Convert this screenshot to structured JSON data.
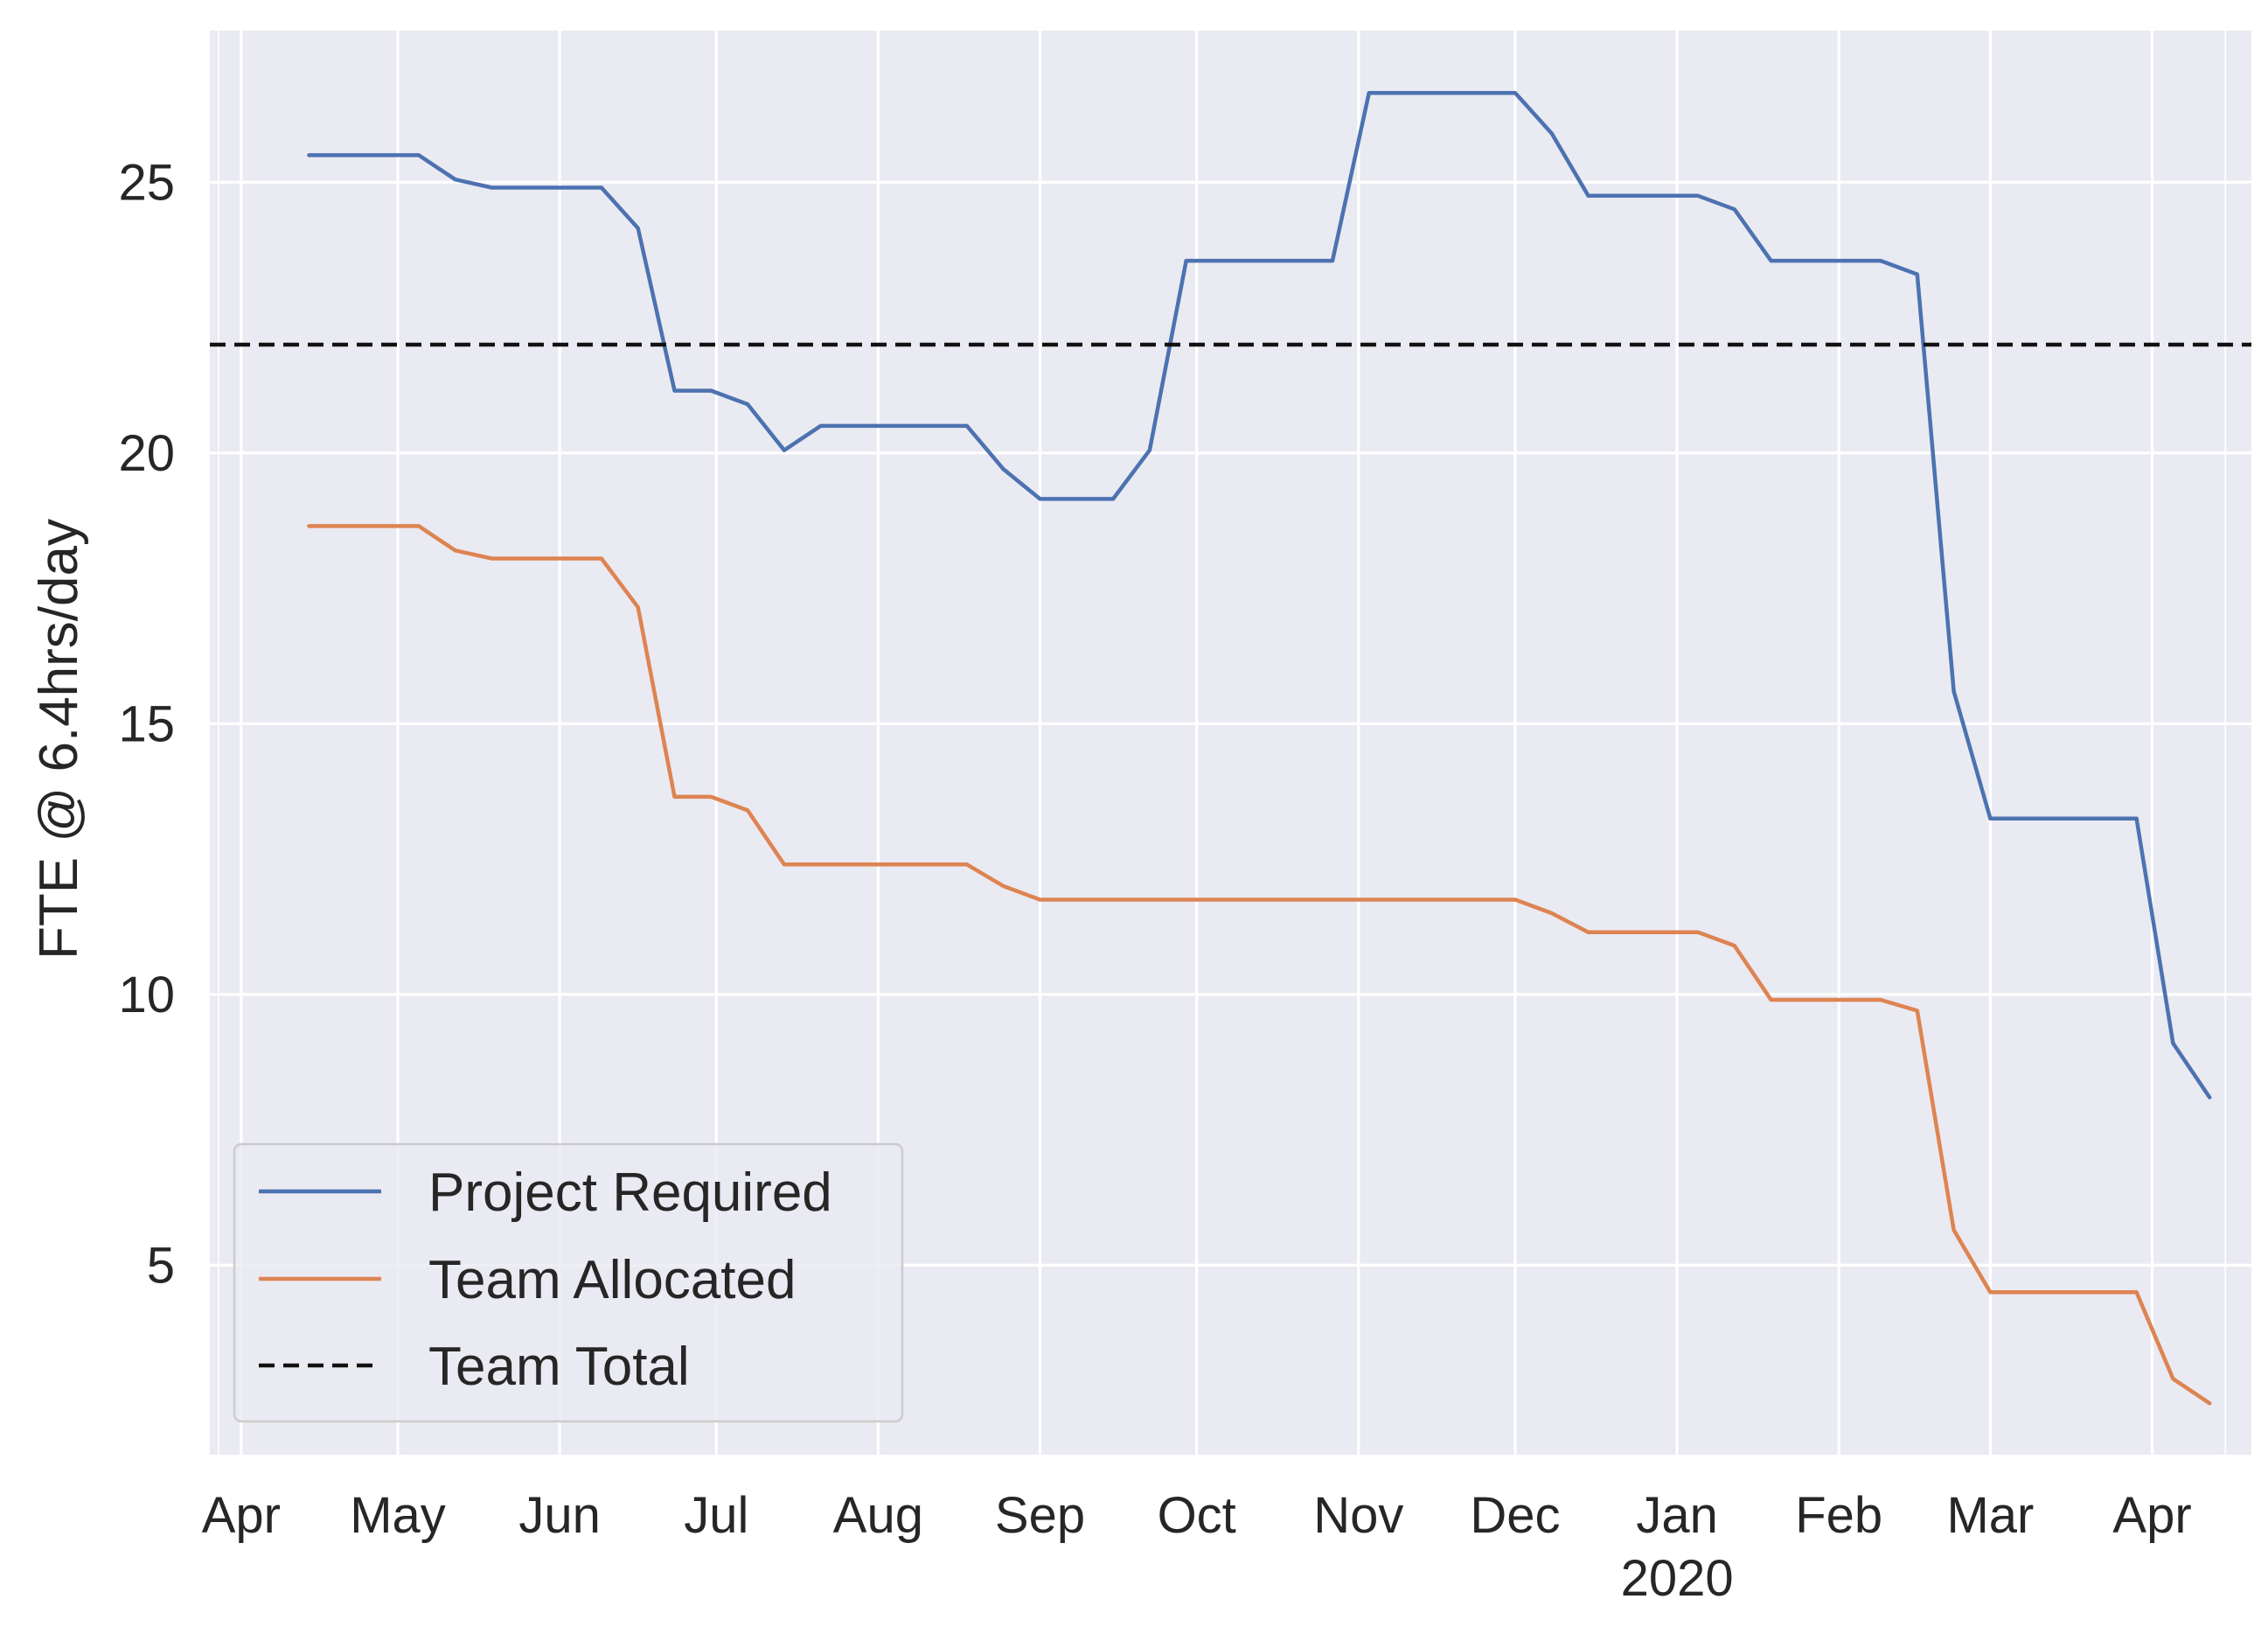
{
  "colors": {
    "plot_background": "#eaeaf2",
    "grid": "#ffffff",
    "project_required": "#4c72b0",
    "team_allocated": "#dd8452",
    "team_total": "#111111",
    "text": "#262626"
  },
  "chart_data": {
    "type": "line",
    "title": "",
    "xlabel": "",
    "ylabel": "FTE @ 6.4hrs/day",
    "grid": true,
    "legend_position": "lower-left",
    "xlim": [
      "2019-03-26",
      "2020-04-20"
    ],
    "ylim": [
      1.5,
      27.8
    ],
    "y_ticks": [
      5,
      10,
      15,
      20,
      25
    ],
    "x_ticks": [
      {
        "date": "2019-04-01",
        "label": "Apr",
        "sublabel": ""
      },
      {
        "date": "2019-05-01",
        "label": "May",
        "sublabel": ""
      },
      {
        "date": "2019-06-01",
        "label": "Jun",
        "sublabel": ""
      },
      {
        "date": "2019-07-01",
        "label": "Jul",
        "sublabel": ""
      },
      {
        "date": "2019-08-01",
        "label": "Aug",
        "sublabel": ""
      },
      {
        "date": "2019-09-01",
        "label": "Sep",
        "sublabel": ""
      },
      {
        "date": "2019-10-01",
        "label": "Oct",
        "sublabel": ""
      },
      {
        "date": "2019-11-01",
        "label": "Nov",
        "sublabel": ""
      },
      {
        "date": "2019-12-01",
        "label": "Dec",
        "sublabel": ""
      },
      {
        "date": "2020-01-01",
        "label": "Jan",
        "sublabel": "2020"
      },
      {
        "date": "2020-02-01",
        "label": "Feb",
        "sublabel": ""
      },
      {
        "date": "2020-03-01",
        "label": "Mar",
        "sublabel": ""
      },
      {
        "date": "2020-04-01",
        "label": "Apr",
        "sublabel": ""
      }
    ],
    "x": [
      "2019-04-14",
      "2019-04-21",
      "2019-04-28",
      "2019-05-05",
      "2019-05-12",
      "2019-05-19",
      "2019-05-26",
      "2019-06-02",
      "2019-06-09",
      "2019-06-16",
      "2019-06-23",
      "2019-06-30",
      "2019-07-07",
      "2019-07-14",
      "2019-07-21",
      "2019-07-28",
      "2019-08-04",
      "2019-08-11",
      "2019-08-18",
      "2019-08-25",
      "2019-09-01",
      "2019-09-08",
      "2019-09-15",
      "2019-09-22",
      "2019-09-29",
      "2019-10-06",
      "2019-10-13",
      "2019-10-20",
      "2019-10-27",
      "2019-11-03",
      "2019-11-10",
      "2019-11-17",
      "2019-11-24",
      "2019-12-01",
      "2019-12-08",
      "2019-12-15",
      "2019-12-22",
      "2019-12-29",
      "2020-01-05",
      "2020-01-12",
      "2020-01-19",
      "2020-01-26",
      "2020-02-02",
      "2020-02-09",
      "2020-02-16",
      "2020-02-23",
      "2020-03-01",
      "2020-03-08",
      "2020-03-15",
      "2020-03-22",
      "2020-03-29",
      "2020-04-05",
      "2020-04-12"
    ],
    "series": [
      {
        "name": "Project Required",
        "style": "solid",
        "values": [
          25.5,
          25.5,
          25.5,
          25.5,
          25.05,
          24.9,
          24.9,
          24.9,
          24.9,
          24.15,
          21.15,
          21.15,
          20.9,
          20.05,
          20.5,
          20.5,
          20.5,
          20.5,
          20.5,
          19.7,
          19.15,
          19.15,
          19.15,
          20.05,
          23.55,
          23.55,
          23.55,
          23.55,
          23.55,
          26.65,
          26.65,
          26.65,
          26.65,
          26.65,
          25.9,
          24.75,
          24.75,
          24.75,
          24.75,
          24.5,
          23.55,
          23.55,
          23.55,
          23.55,
          23.3,
          15.6,
          13.25,
          13.25,
          13.25,
          13.25,
          13.25,
          9.1,
          8.1
        ]
      },
      {
        "name": "Team Allocated",
        "style": "solid",
        "values": [
          18.65,
          18.65,
          18.65,
          18.65,
          18.2,
          18.05,
          18.05,
          18.05,
          18.05,
          17.15,
          13.65,
          13.65,
          13.4,
          12.4,
          12.4,
          12.4,
          12.4,
          12.4,
          12.4,
          12.0,
          11.75,
          11.75,
          11.75,
          11.75,
          11.75,
          11.75,
          11.75,
          11.75,
          11.75,
          11.75,
          11.75,
          11.75,
          11.75,
          11.75,
          11.5,
          11.15,
          11.15,
          11.15,
          11.15,
          10.9,
          9.9,
          9.9,
          9.9,
          9.9,
          9.7,
          5.65,
          4.5,
          4.5,
          4.5,
          4.5,
          4.5,
          2.9,
          2.45
        ]
      },
      {
        "name": "Team Total",
        "style": "dashed",
        "constant": 22.0
      }
    ],
    "series_x_note_unused": null
  }
}
